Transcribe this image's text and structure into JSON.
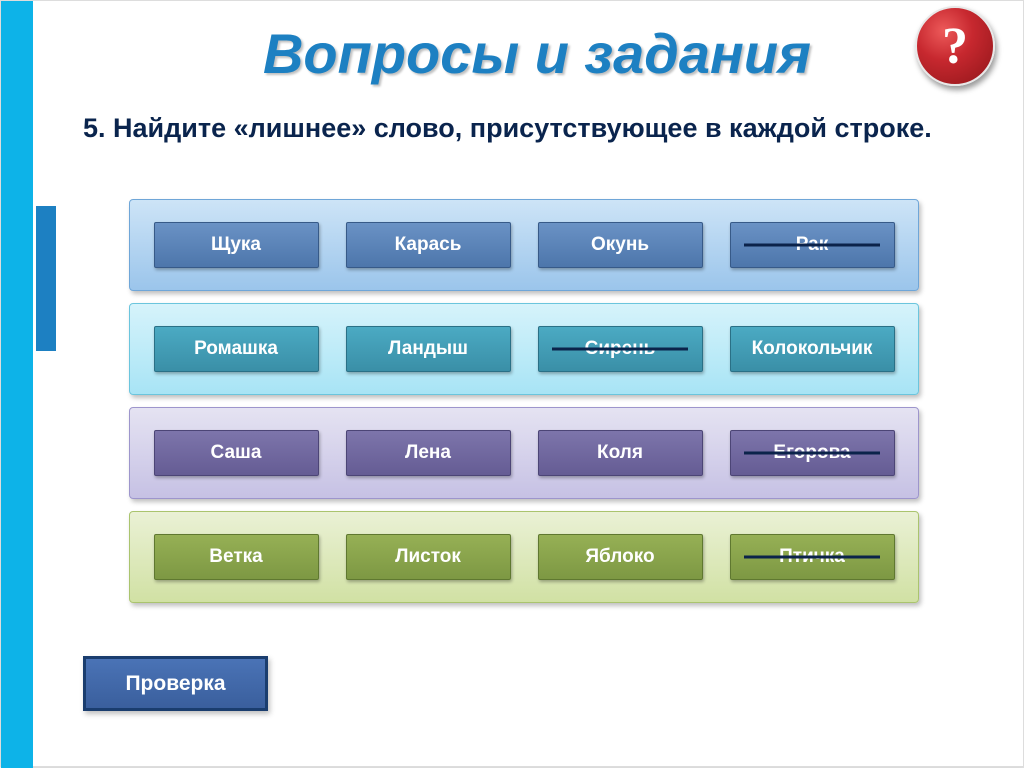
{
  "title": "Вопросы и задания",
  "badge_symbol": "?",
  "question_text": "5. Найдите «лишнее» слово, присутствующее в каждой строке.",
  "check_button_label": "Проверка",
  "colors": {
    "title_color": "#1d80c2",
    "left_bar": "#0db3e8",
    "left_accent": "#1d80c2",
    "question_color": "#0a244d",
    "strike_color": "#0b234a",
    "badge_gradient_from": "#ed5a5a",
    "badge_gradient_mid": "#c7282f",
    "badge_gradient_to": "#8f1519",
    "check_btn_from": "#4a73b6",
    "check_btn_to": "#3a5f9d",
    "check_btn_border": "#1a3d6e"
  },
  "rows": [
    {
      "container_bg_from": "#cde4f7",
      "container_bg_to": "#9bc5eb",
      "container_border": "#6fa6d8",
      "cell_bg_from": "#6a92c5",
      "cell_bg_to": "#4d76ab",
      "cell_border": "#375a88",
      "items": [
        {
          "label": "Щука",
          "struck": false
        },
        {
          "label": "Карась",
          "struck": false
        },
        {
          "label": "Окунь",
          "struck": false
        },
        {
          "label": "Рак",
          "struck": true
        }
      ]
    },
    {
      "container_bg_from": "#d6f3fb",
      "container_bg_to": "#a8e4f5",
      "container_border": "#6bc5dd",
      "cell_bg_from": "#4baac3",
      "cell_bg_to": "#3a8fa7",
      "cell_border": "#2a7086",
      "items": [
        {
          "label": "Ромашка",
          "struck": false
        },
        {
          "label": "Ландыш",
          "struck": false
        },
        {
          "label": "Сирень",
          "struck": true
        },
        {
          "label": "Колокольчик",
          "struck": false
        }
      ]
    },
    {
      "container_bg_from": "#e5e3f2",
      "container_bg_to": "#c6c1e4",
      "container_border": "#9d95cc",
      "cell_bg_from": "#7d75ab",
      "cell_bg_to": "#655c94",
      "cell_border": "#4c4576",
      "items": [
        {
          "label": "Саша",
          "struck": false
        },
        {
          "label": "Лена",
          "struck": false
        },
        {
          "label": "Коля",
          "struck": false
        },
        {
          "label": "Егорова",
          "struck": true
        }
      ]
    },
    {
      "container_bg_from": "#eaf1d5",
      "container_bg_to": "#d1e1a4",
      "container_border": "#aac46e",
      "cell_bg_from": "#96b055",
      "cell_bg_to": "#7d9843",
      "cell_border": "#5f7830",
      "items": [
        {
          "label": "Ветка",
          "struck": false
        },
        {
          "label": "Листок",
          "struck": false
        },
        {
          "label": "Яблоко",
          "struck": false
        },
        {
          "label": "Птичка",
          "struck": true
        }
      ]
    }
  ]
}
